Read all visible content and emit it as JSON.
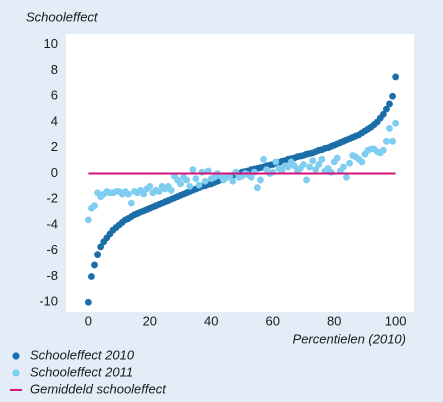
{
  "chart_data": {
    "type": "scatter",
    "y_label": "Schooleffect",
    "x_label": "Percentielen (2010)",
    "xlim": [
      -5,
      105
    ],
    "ylim": [
      -10.6,
      10.6
    ],
    "xticks": [
      0,
      20,
      40,
      60,
      80,
      100
    ],
    "yticks": [
      -10,
      -8,
      -6,
      -4,
      -2,
      0,
      2,
      4,
      6,
      8,
      10
    ],
    "grid": false,
    "legend": "bottom",
    "x": [
      0,
      1,
      2,
      3,
      4,
      5,
      6,
      7,
      8,
      9,
      10,
      11,
      12,
      13,
      14,
      15,
      16,
      17,
      18,
      19,
      20,
      21,
      22,
      23,
      24,
      25,
      26,
      27,
      28,
      29,
      30,
      31,
      32,
      33,
      34,
      35,
      36,
      37,
      38,
      39,
      40,
      41,
      42,
      43,
      44,
      45,
      46,
      47,
      48,
      49,
      50,
      51,
      52,
      53,
      54,
      55,
      56,
      57,
      58,
      59,
      60,
      61,
      62,
      63,
      64,
      65,
      66,
      67,
      68,
      69,
      70,
      71,
      72,
      73,
      74,
      75,
      76,
      77,
      78,
      79,
      80,
      81,
      82,
      83,
      84,
      85,
      86,
      87,
      88,
      89,
      90,
      91,
      92,
      93,
      94,
      95,
      96,
      97,
      98,
      99,
      100
    ],
    "series": [
      {
        "name": "Schooleffect 2010",
        "color": "#1b6ea8",
        "mark": "dot",
        "values": [
          -10,
          -8,
          -7.1,
          -6.3,
          -5.7,
          -5.3,
          -5.0,
          -4.7,
          -4.4,
          -4.2,
          -4.0,
          -3.8,
          -3.6,
          -3.5,
          -3.35,
          -3.2,
          -3.1,
          -3.0,
          -2.9,
          -2.8,
          -2.7,
          -2.6,
          -2.5,
          -2.4,
          -2.3,
          -2.2,
          -2.1,
          -2.0,
          -1.9,
          -1.8,
          -1.7,
          -1.6,
          -1.5,
          -1.4,
          -1.3,
          -1.2,
          -1.1,
          -1.0,
          -0.95,
          -0.85,
          -0.8,
          -0.7,
          -0.6,
          -0.5,
          -0.4,
          -0.3,
          -0.2,
          -0.15,
          -0.05,
          0.0,
          0.1,
          0.15,
          0.2,
          0.3,
          0.35,
          0.4,
          0.45,
          0.5,
          0.6,
          0.65,
          0.7,
          0.8,
          0.85,
          0.95,
          1.0,
          1.1,
          1.15,
          1.2,
          1.3,
          1.35,
          1.4,
          1.5,
          1.55,
          1.6,
          1.7,
          1.8,
          1.85,
          1.95,
          2.0,
          2.1,
          2.2,
          2.3,
          2.4,
          2.5,
          2.6,
          2.7,
          2.8,
          2.9,
          3.0,
          3.15,
          3.3,
          3.45,
          3.6,
          3.8,
          4.0,
          4.3,
          4.6,
          5.0,
          5.4,
          6.0,
          7.5
        ]
      },
      {
        "name": "Schooleffect 2011",
        "color": "#7fcdf0",
        "mark": "dot",
        "values": [
          -3.6,
          -2.7,
          -2.5,
          -1.5,
          -1.8,
          -1.6,
          -1.4,
          -1.5,
          -1.5,
          -1.4,
          -1.4,
          -1.6,
          -1.4,
          -1.6,
          -2.3,
          -1.4,
          -1.5,
          -1.3,
          -1.6,
          -1.2,
          -1.0,
          -1.5,
          -1.3,
          -1.4,
          -1.0,
          -1.2,
          -1.0,
          -1.3,
          -0.2,
          -0.5,
          -0.8,
          -0.3,
          -0.5,
          -1.0,
          0.3,
          -0.4,
          -0.9,
          0.1,
          -0.6,
          0.2,
          -0.4,
          -0.3,
          0.0,
          -0.2,
          -0.5,
          -0.3,
          -0.2,
          -0.6,
          0.1,
          -0.3,
          -0.2,
          0.0,
          -0.1,
          -0.3,
          0.1,
          -1.1,
          -0.5,
          1.1,
          0.3,
          0.0,
          0.1,
          0.9,
          0.4,
          0.2,
          0.6,
          0.5,
          0.9,
          0.6,
          0.2,
          0.4,
          0.7,
          -0.5,
          0.5,
          1.0,
          0.3,
          0.7,
          1.1,
          0.2,
          0.4,
          0.1,
          0.9,
          1.2,
          0.2,
          0.5,
          -0.3,
          0.8,
          1.4,
          1.3,
          1.1,
          0.9,
          1.5,
          1.8,
          1.9,
          1.9,
          1.7,
          1.6,
          1.8,
          2.5,
          3.5,
          2.5,
          3.9
        ]
      },
      {
        "name": "Gemiddeld schooleffect",
        "color": "#d4137d",
        "mark": "line",
        "x": [
          0,
          100
        ],
        "values": [
          0,
          0
        ]
      }
    ]
  }
}
